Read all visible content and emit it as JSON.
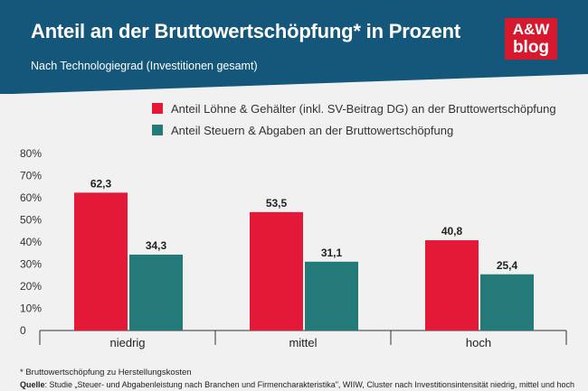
{
  "header": {
    "title": "Anteil an der Bruttowertschöpfung* in Prozent",
    "subtitle": "Nach Technologiegrad (Investitionen gesamt)",
    "logo_line1": "A&W",
    "logo_line2": "blog",
    "bg_color": "#15577a",
    "logo_color": "#d7192d"
  },
  "chart_data": {
    "type": "bar",
    "categories": [
      "niedrig",
      "mittel",
      "hoch"
    ],
    "series": [
      {
        "name": "Anteil Löhne & Gehälter (inkl. SV-Beitrag DG) an der Bruttowertschöpfung",
        "values": [
          62.3,
          53.5,
          40.8
        ],
        "labels": [
          "62,3",
          "53,5",
          "40,8"
        ],
        "color": "#e31937"
      },
      {
        "name": "Anteil Steuern & Abgaben an der Bruttowertschöpfung",
        "values": [
          34.3,
          31.1,
          25.4
        ],
        "labels": [
          "34,3",
          "31,1",
          "25,4"
        ],
        "color": "#237a78"
      }
    ],
    "yticks": [
      0,
      10,
      20,
      30,
      40,
      50,
      60,
      70,
      80
    ],
    "ytick_labels": [
      "0",
      "10%",
      "20%",
      "30%",
      "40%",
      "50%",
      "60%",
      "70%",
      "80%"
    ],
    "ylim": [
      0,
      80
    ],
    "legend_position": "top",
    "grid": false
  },
  "footer": {
    "footnote": "* Bruttowertschöpfung zu Herstellungskosten",
    "source_label": "Quelle",
    "source_text": ": Studie „Steuer- und Abgabenleistung nach Branchen und Firmencharakteristika\", WIIW, Cluster nach Investitionsintensität niedrig, mittel und hoch"
  }
}
